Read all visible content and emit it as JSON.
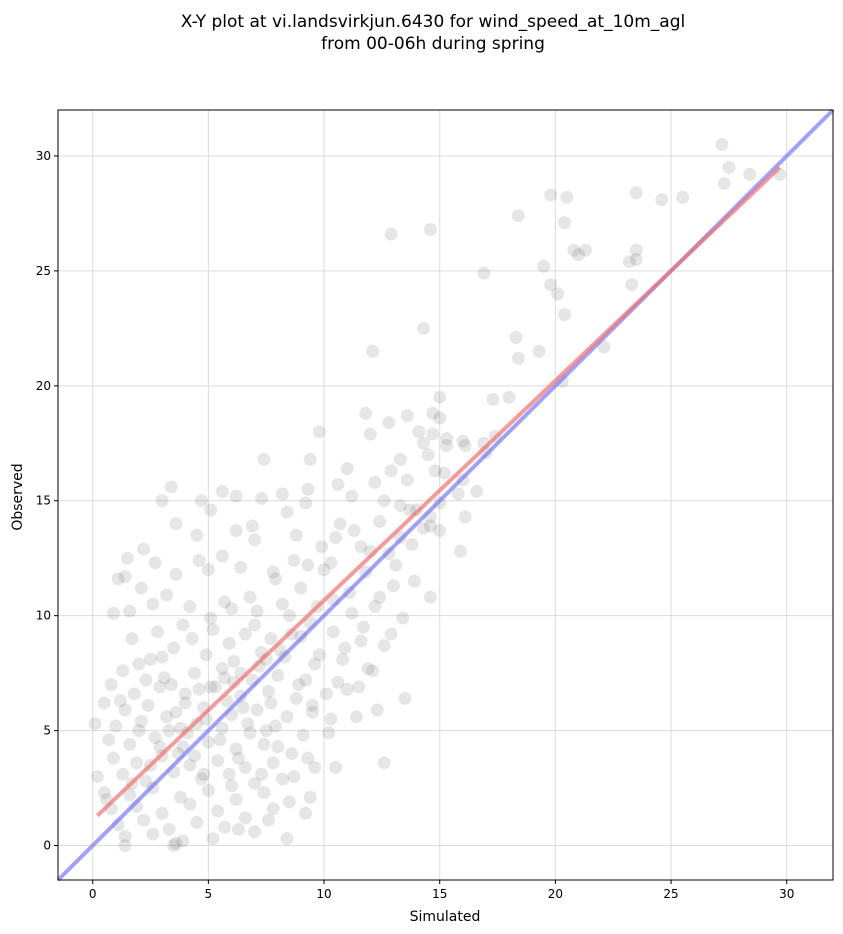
{
  "chart_data": {
    "type": "scatter",
    "title_line1": "X-Y plot at vi.landsvirkjun.6430 for wind_speed_at_10m_agl",
    "title_line2": "from 00-06h during spring",
    "xlabel": "Simulated",
    "ylabel": "Observed",
    "xlim": [
      -1.5,
      32
    ],
    "ylim": [
      -1.5,
      32
    ],
    "xticks": [
      0,
      5,
      10,
      15,
      20,
      25,
      30
    ],
    "yticks": [
      0,
      5,
      10,
      15,
      20,
      25,
      30
    ],
    "grid": true,
    "point_color": "#333333",
    "identity_line": {
      "color": "#6f6ff2",
      "x": [
        -1.5,
        32
      ],
      "y": [
        -1.5,
        32
      ]
    },
    "fit_line": {
      "color": "#ef7070",
      "x": [
        0.2,
        29.7
      ],
      "y": [
        1.3,
        29.5
      ]
    },
    "series": [
      {
        "points": [
          [
            27.2,
            30.5
          ],
          [
            27.5,
            29.5
          ],
          [
            27.3,
            28.8
          ],
          [
            28.4,
            29.2
          ],
          [
            29.7,
            29.2
          ],
          [
            19.8,
            28.3
          ],
          [
            20.5,
            28.2
          ],
          [
            23.5,
            28.4
          ],
          [
            24.6,
            28.1
          ],
          [
            25.5,
            28.2
          ],
          [
            18.4,
            27.4
          ],
          [
            20.4,
            27.1
          ],
          [
            14.6,
            26.8
          ],
          [
            12.9,
            26.6
          ],
          [
            20.8,
            25.9
          ],
          [
            21.3,
            25.9
          ],
          [
            23.5,
            25.9
          ],
          [
            21.0,
            25.7
          ],
          [
            23.2,
            25.4
          ],
          [
            23.5,
            25.5
          ],
          [
            19.5,
            25.2
          ],
          [
            16.9,
            24.9
          ],
          [
            19.8,
            24.4
          ],
          [
            23.3,
            24.4
          ],
          [
            20.1,
            24.0
          ],
          [
            20.4,
            23.1
          ],
          [
            14.3,
            22.5
          ],
          [
            18.3,
            22.1
          ],
          [
            19.3,
            21.5
          ],
          [
            22.1,
            21.7
          ],
          [
            12.1,
            21.5
          ],
          [
            18.4,
            21.2
          ],
          [
            20.3,
            20.2
          ],
          [
            15.0,
            19.5
          ],
          [
            17.3,
            19.4
          ],
          [
            18.0,
            19.5
          ],
          [
            11.8,
            18.8
          ],
          [
            13.6,
            18.7
          ],
          [
            14.7,
            18.8
          ],
          [
            15.0,
            18.6
          ],
          [
            12.8,
            18.4
          ],
          [
            14.1,
            18.0
          ],
          [
            14.7,
            17.9
          ],
          [
            9.8,
            18.0
          ],
          [
            12.0,
            17.9
          ],
          [
            15.3,
            17.7
          ],
          [
            16.0,
            17.6
          ],
          [
            17.4,
            17.8
          ],
          [
            16.9,
            17.5
          ],
          [
            14.3,
            17.5
          ],
          [
            14.5,
            17.0
          ],
          [
            13.3,
            16.8
          ],
          [
            15.3,
            17.4
          ],
          [
            16.1,
            17.4
          ],
          [
            17.0,
            17.1
          ],
          [
            7.4,
            16.8
          ],
          [
            9.4,
            16.8
          ],
          [
            11.0,
            16.4
          ],
          [
            12.9,
            16.3
          ],
          [
            14.8,
            16.3
          ],
          [
            15.2,
            16.2
          ],
          [
            16.0,
            15.9
          ],
          [
            13.6,
            15.9
          ],
          [
            12.2,
            15.8
          ],
          [
            3.4,
            15.6
          ],
          [
            3.0,
            15.0
          ],
          [
            4.7,
            15.0
          ],
          [
            5.1,
            14.6
          ],
          [
            5.6,
            15.4
          ],
          [
            6.2,
            15.2
          ],
          [
            7.3,
            15.1
          ],
          [
            8.2,
            15.3
          ],
          [
            9.2,
            14.9
          ],
          [
            11.2,
            15.2
          ],
          [
            12.6,
            15.0
          ],
          [
            13.3,
            14.8
          ],
          [
            14.0,
            14.6
          ],
          [
            15.0,
            14.9
          ],
          [
            15.8,
            15.3
          ],
          [
            16.6,
            15.4
          ],
          [
            16.1,
            14.3
          ],
          [
            14.6,
            14.3
          ],
          [
            15.0,
            13.7
          ],
          [
            14.6,
            13.9
          ],
          [
            13.3,
            13.4
          ],
          [
            15.9,
            12.8
          ],
          [
            3.6,
            14.0
          ],
          [
            4.5,
            13.5
          ],
          [
            6.2,
            13.7
          ],
          [
            7.0,
            13.3
          ],
          [
            8.8,
            13.5
          ],
          [
            10.5,
            13.4
          ],
          [
            11.6,
            13.0
          ],
          [
            12.8,
            12.7
          ],
          [
            2.2,
            12.9
          ],
          [
            1.5,
            12.5
          ],
          [
            2.7,
            12.3
          ],
          [
            5.0,
            12.0
          ],
          [
            4.6,
            12.4
          ],
          [
            6.4,
            12.1
          ],
          [
            7.8,
            11.9
          ],
          [
            9.3,
            12.2
          ],
          [
            10.3,
            12.3
          ],
          [
            11.8,
            11.9
          ],
          [
            13.0,
            11.3
          ],
          [
            13.9,
            11.5
          ],
          [
            14.6,
            10.8
          ],
          [
            1.1,
            11.6
          ],
          [
            1.4,
            11.7
          ],
          [
            3.6,
            11.8
          ],
          [
            2.1,
            11.2
          ],
          [
            3.2,
            10.9
          ],
          [
            0.9,
            10.1
          ],
          [
            1.6,
            10.2
          ],
          [
            2.6,
            10.5
          ],
          [
            4.2,
            10.4
          ],
          [
            5.7,
            10.6
          ],
          [
            7.1,
            10.2
          ],
          [
            8.5,
            10.0
          ],
          [
            9.7,
            10.4
          ],
          [
            11.2,
            10.1
          ],
          [
            12.2,
            10.4
          ],
          [
            13.4,
            9.9
          ],
          [
            12.9,
            9.2
          ],
          [
            1.7,
            9.0
          ],
          [
            2.8,
            9.3
          ],
          [
            3.9,
            9.6
          ],
          [
            5.2,
            9.4
          ],
          [
            6.6,
            9.2
          ],
          [
            7.7,
            9.0
          ],
          [
            9.0,
            9.1
          ],
          [
            10.4,
            9.3
          ],
          [
            11.6,
            8.9
          ],
          [
            12.6,
            8.7
          ],
          [
            2.5,
            8.1
          ],
          [
            3.5,
            8.6
          ],
          [
            4.9,
            8.3
          ],
          [
            6.1,
            8.0
          ],
          [
            7.3,
            8.4
          ],
          [
            8.3,
            8.2
          ],
          [
            9.6,
            7.9
          ],
          [
            10.8,
            8.1
          ],
          [
            11.9,
            7.7
          ],
          [
            12.1,
            7.6
          ],
          [
            1.3,
            7.6
          ],
          [
            2.0,
            7.9
          ],
          [
            3.1,
            7.3
          ],
          [
            4.4,
            7.5
          ],
          [
            5.6,
            7.7
          ],
          [
            6.9,
            7.2
          ],
          [
            8.0,
            7.4
          ],
          [
            9.2,
            7.2
          ],
          [
            10.6,
            7.1
          ],
          [
            11.5,
            6.9
          ],
          [
            11.0,
            6.8
          ],
          [
            0.8,
            7.0
          ],
          [
            1.8,
            6.6
          ],
          [
            2.9,
            6.9
          ],
          [
            4.0,
            6.6
          ],
          [
            5.1,
            6.9
          ],
          [
            6.4,
            6.5
          ],
          [
            7.6,
            6.7
          ],
          [
            8.8,
            6.4
          ],
          [
            10.1,
            6.6
          ],
          [
            0.5,
            6.2
          ],
          [
            1.4,
            5.9
          ],
          [
            2.4,
            6.1
          ],
          [
            3.6,
            5.8
          ],
          [
            4.8,
            6.0
          ],
          [
            6.0,
            5.7
          ],
          [
            7.1,
            5.9
          ],
          [
            8.4,
            5.6
          ],
          [
            9.5,
            5.8
          ],
          [
            10.3,
            5.5
          ],
          [
            11.4,
            5.6
          ],
          [
            12.3,
            5.9
          ],
          [
            13.5,
            6.4
          ],
          [
            0.1,
            5.3
          ],
          [
            1.0,
            5.2
          ],
          [
            2.1,
            5.4
          ],
          [
            3.3,
            5.0
          ],
          [
            4.5,
            5.3
          ],
          [
            5.6,
            5.1
          ],
          [
            6.8,
            4.9
          ],
          [
            7.9,
            5.2
          ],
          [
            9.1,
            4.8
          ],
          [
            10.2,
            4.9
          ],
          [
            0.7,
            4.6
          ],
          [
            1.6,
            4.4
          ],
          [
            2.7,
            4.7
          ],
          [
            3.9,
            4.3
          ],
          [
            5.0,
            4.5
          ],
          [
            6.2,
            4.2
          ],
          [
            7.4,
            4.4
          ],
          [
            8.6,
            4.0
          ],
          [
            9.3,
            3.8
          ],
          [
            0.9,
            3.8
          ],
          [
            1.9,
            3.6
          ],
          [
            3.0,
            3.9
          ],
          [
            4.2,
            3.5
          ],
          [
            5.4,
            3.7
          ],
          [
            6.6,
            3.4
          ],
          [
            7.8,
            3.6
          ],
          [
            8.7,
            3.0
          ],
          [
            9.6,
            3.4
          ],
          [
            10.5,
            3.4
          ],
          [
            12.6,
            3.6
          ],
          [
            0.2,
            3.0
          ],
          [
            1.3,
            3.1
          ],
          [
            2.3,
            2.8
          ],
          [
            3.5,
            3.2
          ],
          [
            4.7,
            2.9
          ],
          [
            5.9,
            3.1
          ],
          [
            7.0,
            2.7
          ],
          [
            8.2,
            2.9
          ],
          [
            0.5,
            2.3
          ],
          [
            1.6,
            2.2
          ],
          [
            2.6,
            2.5
          ],
          [
            3.8,
            2.1
          ],
          [
            5.0,
            2.4
          ],
          [
            6.2,
            2.0
          ],
          [
            7.4,
            2.3
          ],
          [
            8.5,
            1.9
          ],
          [
            9.4,
            2.1
          ],
          [
            0.8,
            1.6
          ],
          [
            1.9,
            1.7
          ],
          [
            3.0,
            1.4
          ],
          [
            4.2,
            1.8
          ],
          [
            5.4,
            1.5
          ],
          [
            6.6,
            1.2
          ],
          [
            7.8,
            1.6
          ],
          [
            9.2,
            1.4
          ],
          [
            1.1,
            0.9
          ],
          [
            2.2,
            1.1
          ],
          [
            3.3,
            0.7
          ],
          [
            4.5,
            1.0
          ],
          [
            5.7,
            0.8
          ],
          [
            7.0,
            0.6
          ],
          [
            8.4,
            0.3
          ],
          [
            1.4,
            0.4
          ],
          [
            2.6,
            0.5
          ],
          [
            3.9,
            0.2
          ],
          [
            5.2,
            0.3
          ],
          [
            1.4,
            0.0
          ],
          [
            3.5,
            0.0
          ],
          [
            3.6,
            0.1
          ],
          [
            6.3,
            0.7
          ],
          [
            7.6,
            1.1
          ],
          [
            3.4,
            7.0
          ],
          [
            4.6,
            6.8
          ],
          [
            5.3,
            6.9
          ],
          [
            6.1,
            7.1
          ],
          [
            7.2,
            7.8
          ],
          [
            8.1,
            8.5
          ],
          [
            4.9,
            5.5
          ],
          [
            5.8,
            6.3
          ],
          [
            6.5,
            6.0
          ],
          [
            7.7,
            6.2
          ],
          [
            8.9,
            7.0
          ],
          [
            9.8,
            8.3
          ],
          [
            3.2,
            5.6
          ],
          [
            4.1,
            4.9
          ],
          [
            5.5,
            4.6
          ],
          [
            6.7,
            5.3
          ],
          [
            7.5,
            5.0
          ],
          [
            2.9,
            4.3
          ],
          [
            3.8,
            5.1
          ],
          [
            4.4,
            3.9
          ],
          [
            6.3,
            3.8
          ],
          [
            5.9,
            8.8
          ],
          [
            7.0,
            9.6
          ],
          [
            8.2,
            10.5
          ],
          [
            9.0,
            11.2
          ],
          [
            10.0,
            12.0
          ],
          [
            6.8,
            10.8
          ],
          [
            7.9,
            11.6
          ],
          [
            8.7,
            12.4
          ],
          [
            9.9,
            13.0
          ],
          [
            10.7,
            14.0
          ],
          [
            11.3,
            13.7
          ],
          [
            4.3,
            9.0
          ],
          [
            5.1,
            9.9
          ],
          [
            6.0,
            10.3
          ],
          [
            3.0,
            8.2
          ],
          [
            2.3,
            7.2
          ],
          [
            1.2,
            6.3
          ],
          [
            2.0,
            5.0
          ],
          [
            3.7,
            4.0
          ],
          [
            4.8,
            3.1
          ],
          [
            6.0,
            2.6
          ],
          [
            7.3,
            3.1
          ],
          [
            8.0,
            4.3
          ],
          [
            9.5,
            6.1
          ],
          [
            10.9,
            8.6
          ],
          [
            11.7,
            9.5
          ],
          [
            12.4,
            10.8
          ],
          [
            13.1,
            12.2
          ],
          [
            13.8,
            13.1
          ],
          [
            14.3,
            13.8
          ],
          [
            11.1,
            11.0
          ],
          [
            10.4,
            10.7
          ],
          [
            9.4,
            9.7
          ],
          [
            8.6,
            9.2
          ],
          [
            7.5,
            8.1
          ],
          [
            6.4,
            7.5
          ],
          [
            5.7,
            7.3
          ],
          [
            4.0,
            6.2
          ],
          [
            2.5,
            3.5
          ],
          [
            1.7,
            2.7
          ],
          [
            0.6,
            2.0
          ],
          [
            5.6,
            12.6
          ],
          [
            6.9,
            13.9
          ],
          [
            8.4,
            14.5
          ],
          [
            9.3,
            15.5
          ],
          [
            10.6,
            15.7
          ],
          [
            12.4,
            14.1
          ],
          [
            13.7,
            14.6
          ],
          [
            12.0,
            12.8
          ]
        ]
      }
    ]
  }
}
